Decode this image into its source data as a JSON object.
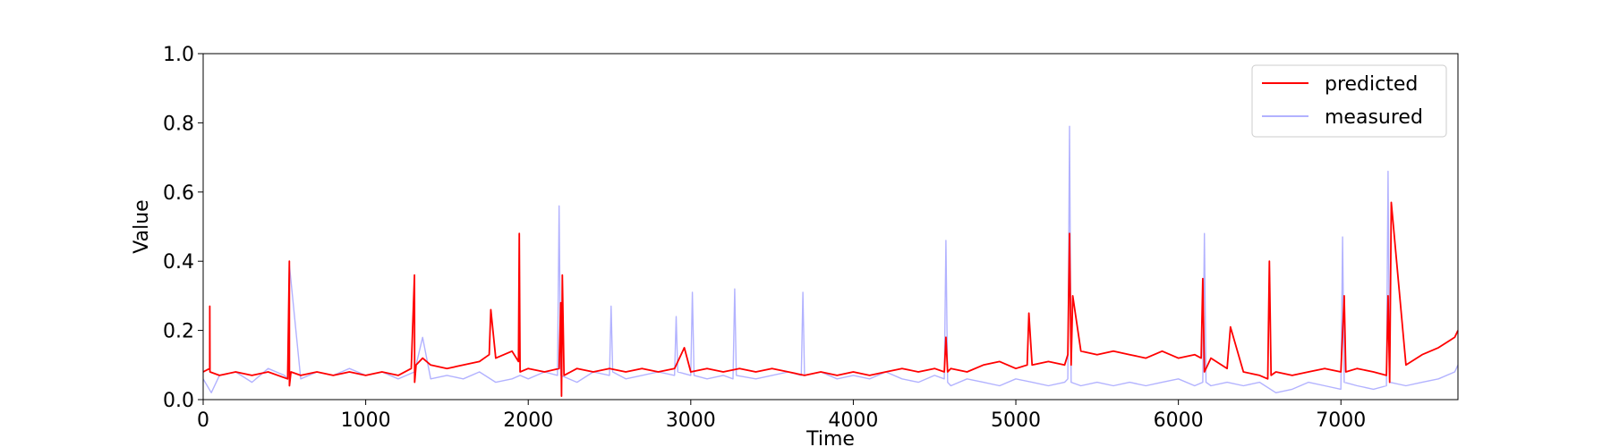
{
  "chart_data": {
    "type": "line",
    "title": "",
    "xlabel": "Time",
    "ylabel": "Value",
    "xlim": [
      0,
      7720
    ],
    "ylim": [
      0,
      1.0
    ],
    "xticks": [
      0,
      1000,
      2000,
      3000,
      4000,
      5000,
      6000,
      7000
    ],
    "xtick_labels": [
      "0",
      "1000",
      "2000",
      "3000",
      "4000",
      "5000",
      "6000",
      "7000"
    ],
    "yticks": [
      0.0,
      0.2,
      0.4,
      0.6,
      0.8,
      1.0
    ],
    "ytick_labels": [
      "0.0",
      "0.2",
      "0.4",
      "0.6",
      "0.8",
      "1.0"
    ],
    "grid": false,
    "legend_position": "top-right",
    "series": [
      {
        "name": "predicted",
        "color": "#ff0000",
        "opacity": 1.0,
        "x": [
          0,
          40,
          41,
          42,
          100,
          200,
          300,
          400,
          520,
          530,
          531,
          540,
          600,
          700,
          800,
          900,
          1000,
          1100,
          1200,
          1280,
          1300,
          1301,
          1310,
          1350,
          1400,
          1500,
          1600,
          1700,
          1760,
          1770,
          1800,
          1850,
          1900,
          1940,
          1945,
          1950,
          2000,
          2100,
          2190,
          2200,
          2205,
          2210,
          2220,
          2300,
          2400,
          2500,
          2600,
          2700,
          2800,
          2900,
          2960,
          3000,
          3100,
          3200,
          3300,
          3400,
          3500,
          3600,
          3700,
          3800,
          3900,
          4000,
          4100,
          4200,
          4300,
          4400,
          4500,
          4560,
          4570,
          4580,
          4600,
          4700,
          4800,
          4900,
          5000,
          5070,
          5080,
          5100,
          5200,
          5300,
          5320,
          5330,
          5340,
          5350,
          5400,
          5500,
          5600,
          5700,
          5800,
          5900,
          6000,
          6100,
          6140,
          6150,
          6160,
          6200,
          6300,
          6320,
          6400,
          6500,
          6550,
          6560,
          6570,
          6600,
          6700,
          6800,
          6900,
          7000,
          7020,
          7030,
          7100,
          7200,
          7280,
          7290,
          7300,
          7310,
          7400,
          7500,
          7600,
          7700,
          7720
        ],
        "y": [
          0.08,
          0.09,
          0.27,
          0.08,
          0.07,
          0.08,
          0.07,
          0.08,
          0.06,
          0.4,
          0.04,
          0.08,
          0.07,
          0.08,
          0.07,
          0.08,
          0.07,
          0.08,
          0.07,
          0.09,
          0.36,
          0.05,
          0.1,
          0.12,
          0.1,
          0.09,
          0.1,
          0.11,
          0.13,
          0.26,
          0.12,
          0.13,
          0.14,
          0.11,
          0.48,
          0.08,
          0.09,
          0.08,
          0.09,
          0.28,
          0.01,
          0.36,
          0.07,
          0.09,
          0.08,
          0.09,
          0.08,
          0.09,
          0.08,
          0.09,
          0.15,
          0.08,
          0.09,
          0.08,
          0.09,
          0.08,
          0.09,
          0.08,
          0.07,
          0.08,
          0.07,
          0.08,
          0.07,
          0.08,
          0.09,
          0.08,
          0.09,
          0.08,
          0.18,
          0.08,
          0.09,
          0.08,
          0.1,
          0.11,
          0.09,
          0.1,
          0.25,
          0.1,
          0.11,
          0.1,
          0.13,
          0.48,
          0.1,
          0.3,
          0.14,
          0.13,
          0.14,
          0.13,
          0.12,
          0.14,
          0.12,
          0.13,
          0.12,
          0.35,
          0.08,
          0.12,
          0.09,
          0.21,
          0.08,
          0.07,
          0.06,
          0.4,
          0.07,
          0.08,
          0.07,
          0.08,
          0.09,
          0.08,
          0.3,
          0.08,
          0.09,
          0.08,
          0.07,
          0.3,
          0.05,
          0.57,
          0.1,
          0.13,
          0.15,
          0.18,
          0.2
        ]
      },
      {
        "name": "measured",
        "color": "#0000ff",
        "opacity": 0.3,
        "x": [
          0,
          50,
          100,
          200,
          300,
          400,
          500,
          520,
          530,
          600,
          700,
          800,
          900,
          1000,
          1100,
          1200,
          1300,
          1350,
          1400,
          1500,
          1600,
          1700,
          1800,
          1900,
          1950,
          2000,
          2100,
          2180,
          2190,
          2200,
          2300,
          2400,
          2500,
          2510,
          2520,
          2600,
          2700,
          2800,
          2900,
          2910,
          2920,
          3000,
          3010,
          3020,
          3100,
          3200,
          3260,
          3270,
          3280,
          3400,
          3500,
          3600,
          3680,
          3690,
          3700,
          3800,
          3900,
          4000,
          4100,
          4200,
          4300,
          4400,
          4500,
          4560,
          4570,
          4580,
          4600,
          4700,
          4800,
          4900,
          5000,
          5100,
          5200,
          5300,
          5320,
          5330,
          5340,
          5400,
          5500,
          5600,
          5700,
          5800,
          5900,
          6000,
          6100,
          6150,
          6160,
          6170,
          6200,
          6300,
          6400,
          6500,
          6600,
          6700,
          6800,
          6900,
          7000,
          7010,
          7020,
          7100,
          7200,
          7280,
          7290,
          7300,
          7400,
          7500,
          7600,
          7700,
          7720
        ],
        "y": [
          0.06,
          0.02,
          0.07,
          0.08,
          0.05,
          0.09,
          0.07,
          0.06,
          0.39,
          0.06,
          0.08,
          0.07,
          0.09,
          0.07,
          0.08,
          0.06,
          0.08,
          0.18,
          0.06,
          0.07,
          0.06,
          0.08,
          0.05,
          0.06,
          0.07,
          0.06,
          0.08,
          0.07,
          0.56,
          0.07,
          0.05,
          0.08,
          0.07,
          0.27,
          0.08,
          0.06,
          0.07,
          0.08,
          0.07,
          0.24,
          0.08,
          0.07,
          0.31,
          0.07,
          0.06,
          0.07,
          0.06,
          0.32,
          0.07,
          0.06,
          0.07,
          0.08,
          0.07,
          0.31,
          0.07,
          0.08,
          0.06,
          0.07,
          0.06,
          0.08,
          0.06,
          0.05,
          0.07,
          0.06,
          0.46,
          0.05,
          0.04,
          0.06,
          0.05,
          0.04,
          0.06,
          0.05,
          0.04,
          0.05,
          0.06,
          0.79,
          0.05,
          0.04,
          0.05,
          0.04,
          0.05,
          0.04,
          0.05,
          0.06,
          0.04,
          0.05,
          0.48,
          0.05,
          0.04,
          0.05,
          0.04,
          0.05,
          0.02,
          0.03,
          0.05,
          0.04,
          0.03,
          0.47,
          0.05,
          0.04,
          0.03,
          0.04,
          0.66,
          0.05,
          0.04,
          0.05,
          0.06,
          0.08,
          0.1
        ]
      }
    ]
  }
}
